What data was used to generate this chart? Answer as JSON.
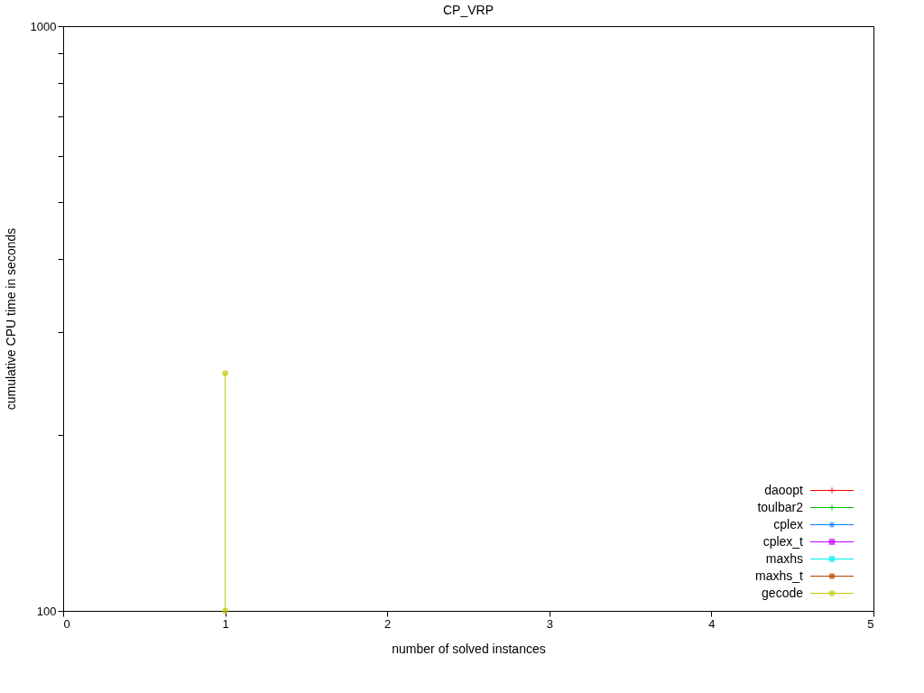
{
  "chart_data": {
    "type": "line",
    "title": "CP_VRP",
    "xlabel": "number of solved instances",
    "ylabel": "cumulative CPU time in seconds",
    "xlim": [
      0,
      5
    ],
    "xticks": [
      0,
      1,
      2,
      3,
      4,
      5
    ],
    "ylim": [
      100,
      1000
    ],
    "log": "y",
    "yticks": [
      100,
      {
        "value": 200,
        "label": null
      },
      {
        "value": 300,
        "label": null
      },
      {
        "value": 400,
        "label": null
      },
      {
        "value": 500,
        "label": null
      },
      {
        "value": 600,
        "label": null
      },
      {
        "value": 700,
        "label": null
      },
      {
        "value": 800,
        "label": null
      },
      {
        "value": 900,
        "label": null
      },
      1000
    ],
    "grid": false,
    "legend": "bottom right",
    "series": [
      {
        "name": "daoopt",
        "color": "#ff0000",
        "marker": "cross"
      },
      {
        "name": "toulbar2",
        "color": "#00c000",
        "marker": "cross"
      },
      {
        "name": "cplex",
        "color": "#0080ff",
        "marker": "star"
      },
      {
        "name": "cplex_t",
        "color": "#c000ff",
        "marker": "square"
      },
      {
        "name": "maxhs",
        "color": "#00eeee",
        "marker": "square"
      },
      {
        "name": "maxhs_t",
        "color": "#c04000",
        "marker": "circle"
      },
      {
        "name": "gecode",
        "color": "#c8c800",
        "marker": "circle",
        "x": [
          1,
          1
        ],
        "values": [
          100,
          255
        ]
      }
    ]
  }
}
